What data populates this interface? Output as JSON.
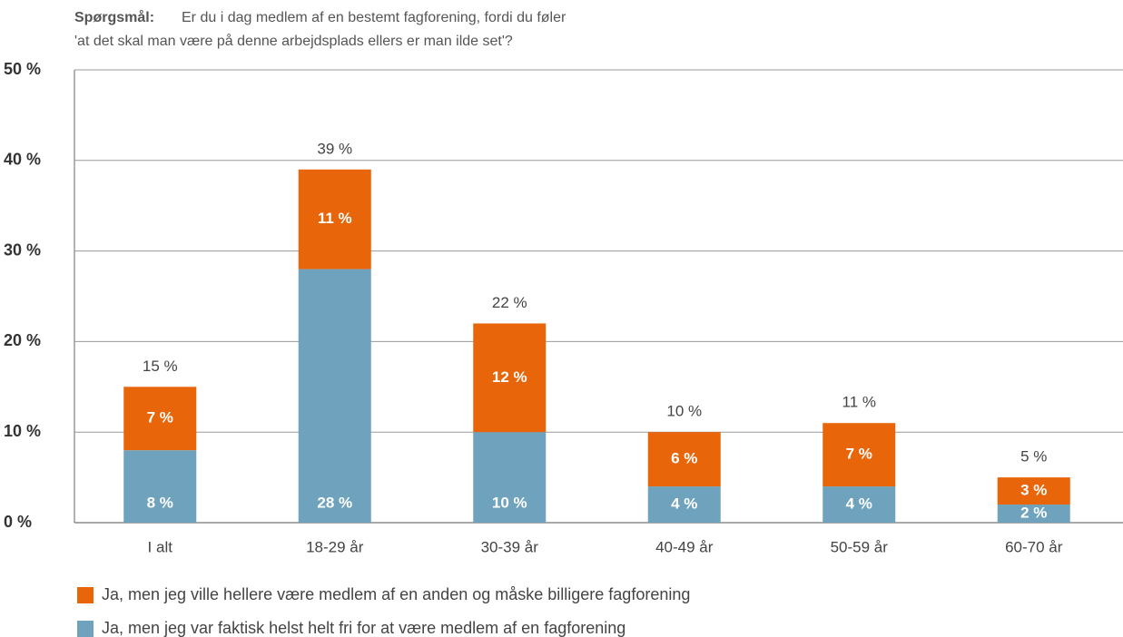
{
  "chart_data": {
    "type": "stacked_bar",
    "title_label": "Spørgsmål:",
    "title": [
      "Er du i dag medlem af en bestemt fagforening, fordi du føler",
      "'at det skal man være på denne arbejdsplads ellers er man ilde set'?"
    ],
    "categories": [
      "I alt",
      "18-29 år",
      "30-39 år",
      "40-49 år",
      "50-59 år",
      "60-70 år"
    ],
    "series": [
      {
        "name": "Ja, men jeg var faktisk helst helt fri for at være medlem af en fagforening",
        "color": "#6fa3bd",
        "values": [
          8,
          28,
          10,
          4,
          4,
          2
        ],
        "value_labels": [
          "8 %",
          "28 %",
          "10 %",
          "4 %",
          "4 %",
          "2 %"
        ]
      },
      {
        "name": "Ja, men jeg ville hellere være medlem af en anden og måske billigere fagforening",
        "color": "#e8650a",
        "values": [
          7,
          11,
          12,
          6,
          7,
          3
        ],
        "value_labels": [
          "7 %",
          "11 %",
          "12 %",
          "6 %",
          "7 %",
          "3 %"
        ]
      }
    ],
    "totals": [
      15,
      39,
      22,
      10,
      11,
      5
    ],
    "total_labels": [
      "15 %",
      "39 %",
      "22 %",
      "10 %",
      "11 %",
      "5 %"
    ],
    "ylim": [
      0,
      50
    ],
    "yticks": [
      {
        "value": 0,
        "label": "0 %"
      },
      {
        "value": 10,
        "label": "10 %"
      },
      {
        "value": 20,
        "label": "20 %"
      },
      {
        "value": 30,
        "label": "30 %"
      },
      {
        "value": 40,
        "label": "40 %"
      },
      {
        "value": 50,
        "label": "50 %"
      }
    ],
    "grid": true,
    "legend": "bottom"
  }
}
